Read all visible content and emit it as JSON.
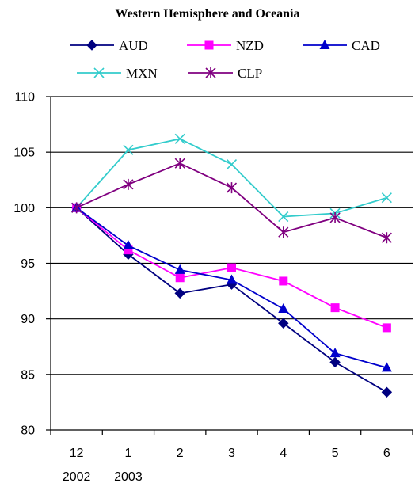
{
  "chart_data": {
    "type": "line",
    "title": "Western Hemisphere and Oceania",
    "xlabel": "",
    "ylabel": "",
    "x": [
      "12",
      "1",
      "2",
      "3",
      "4",
      "5",
      "6"
    ],
    "x_sublabels": [
      "2002",
      "2003",
      "",
      "",
      "",
      "",
      ""
    ],
    "ylim": [
      80,
      110
    ],
    "yticks": [
      80,
      85,
      90,
      95,
      100,
      105,
      110
    ],
    "grid": "horizontal",
    "legend_position": "top",
    "series": [
      {
        "name": "AUD",
        "color": "#000080",
        "marker": "diamond",
        "values": [
          100,
          95.8,
          92.3,
          93.1,
          89.6,
          86.1,
          83.4
        ]
      },
      {
        "name": "NZD",
        "color": "#FF00FF",
        "marker": "square",
        "values": [
          100,
          96.2,
          93.7,
          94.6,
          93.4,
          91.0,
          89.2
        ]
      },
      {
        "name": "CAD",
        "color": "#0000CC",
        "marker": "triangle",
        "values": [
          100,
          96.6,
          94.4,
          93.5,
          90.9,
          86.9,
          85.6
        ]
      },
      {
        "name": "MXN",
        "color": "#33CCCC",
        "marker": "x",
        "values": [
          100,
          105.2,
          106.2,
          103.9,
          99.2,
          99.5,
          100.9
        ]
      },
      {
        "name": "CLP",
        "color": "#800080",
        "marker": "star",
        "values": [
          100,
          102.1,
          104.0,
          101.8,
          97.8,
          99.1,
          97.3
        ]
      }
    ]
  }
}
